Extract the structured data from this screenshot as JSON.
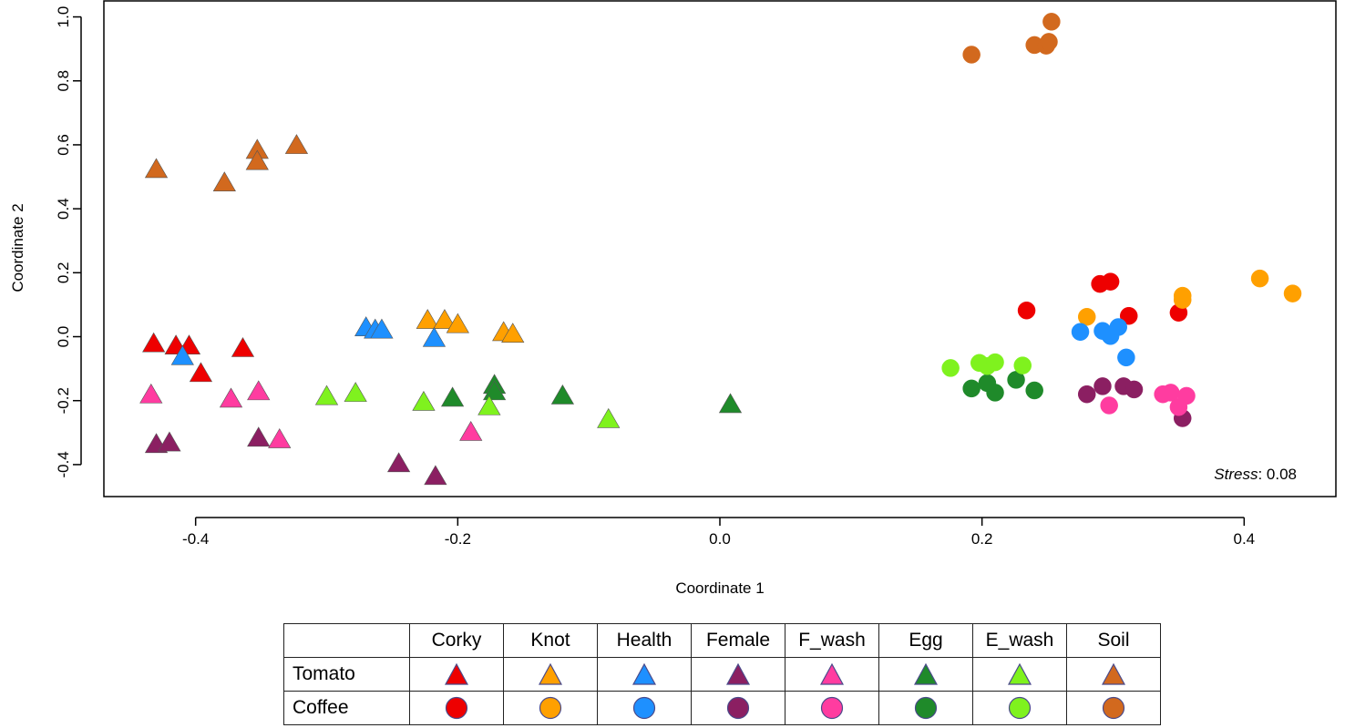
{
  "chart_data": {
    "type": "scatter",
    "xlabel": "Coordinate 1",
    "ylabel": "Coordinate 2",
    "xlim": [
      -0.47,
      0.47
    ],
    "ylim": [
      -0.5,
      1.05
    ],
    "xticks": [
      -0.4,
      -0.2,
      0.0,
      0.2,
      0.4
    ],
    "xtick_labels": [
      "-0.4",
      "-0.2",
      "0.0",
      "0.2",
      "0.4"
    ],
    "yticks": [
      -0.4,
      -0.2,
      0.0,
      0.2,
      0.4,
      0.6,
      0.8,
      1.0
    ],
    "ytick_labels": [
      "-0.4",
      "-0.2",
      "0.0",
      "0.2",
      "0.4",
      "0.6",
      "0.8",
      "1.0"
    ],
    "annotation": {
      "italic": "Stress",
      "rest": ": 0.08"
    },
    "series": [
      {
        "name": "Tomato Corky",
        "host": "Tomato",
        "group": "Corky",
        "shape": "triangle",
        "color": "#ee0000",
        "points": [
          [
            -0.432,
            -0.025
          ],
          [
            -0.415,
            -0.032
          ],
          [
            -0.405,
            -0.032
          ],
          [
            -0.396,
            -0.118
          ],
          [
            -0.364,
            -0.04
          ]
        ]
      },
      {
        "name": "Tomato Knot",
        "host": "Tomato",
        "group": "Knot",
        "shape": "triangle",
        "color": "#ffa000",
        "points": [
          [
            -0.223,
            0.048
          ],
          [
            -0.21,
            0.048
          ],
          [
            -0.2,
            0.035
          ],
          [
            -0.165,
            0.01
          ],
          [
            -0.158,
            0.005
          ]
        ]
      },
      {
        "name": "Tomato Health",
        "host": "Tomato",
        "group": "Health",
        "shape": "triangle",
        "color": "#1e90ff",
        "points": [
          [
            -0.27,
            0.025
          ],
          [
            -0.263,
            0.018
          ],
          [
            -0.258,
            0.018
          ],
          [
            -0.218,
            -0.008
          ],
          [
            -0.41,
            -0.065
          ]
        ]
      },
      {
        "name": "Tomato Female",
        "host": "Tomato",
        "group": "Female",
        "shape": "triangle",
        "color": "#8b1f62",
        "points": [
          [
            -0.43,
            -0.34
          ],
          [
            -0.42,
            -0.335
          ],
          [
            -0.352,
            -0.32
          ],
          [
            -0.245,
            -0.4
          ],
          [
            -0.217,
            -0.44
          ]
        ]
      },
      {
        "name": "Tomato F_wash",
        "host": "Tomato",
        "group": "F_wash",
        "shape": "triangle",
        "color": "#ff3ca0",
        "points": [
          [
            -0.434,
            -0.185
          ],
          [
            -0.373,
            -0.198
          ],
          [
            -0.352,
            -0.175
          ],
          [
            -0.336,
            -0.325
          ],
          [
            -0.19,
            -0.302
          ]
        ]
      },
      {
        "name": "Tomato Egg",
        "host": "Tomato",
        "group": "Egg",
        "shape": "triangle",
        "color": "#1f8a2a",
        "points": [
          [
            -0.204,
            -0.195
          ],
          [
            -0.172,
            -0.155
          ],
          [
            -0.172,
            -0.175
          ],
          [
            -0.12,
            -0.188
          ],
          [
            0.008,
            -0.215
          ]
        ]
      },
      {
        "name": "Tomato E_wash",
        "host": "Tomato",
        "group": "E_wash",
        "shape": "triangle",
        "color": "#7ff21e",
        "points": [
          [
            -0.3,
            -0.19
          ],
          [
            -0.278,
            -0.18
          ],
          [
            -0.226,
            -0.208
          ],
          [
            -0.176,
            -0.222
          ],
          [
            -0.085,
            -0.262
          ]
        ]
      },
      {
        "name": "Tomato Soil",
        "host": "Tomato",
        "group": "Soil",
        "shape": "triangle",
        "color": "#d2691e",
        "points": [
          [
            -0.43,
            0.52
          ],
          [
            -0.378,
            0.478
          ],
          [
            -0.353,
            0.58
          ],
          [
            -0.353,
            0.545
          ],
          [
            -0.323,
            0.595
          ]
        ]
      },
      {
        "name": "Coffee Corky",
        "host": "Coffee",
        "group": "Corky",
        "shape": "circle",
        "color": "#ee0000",
        "points": [
          [
            0.234,
            0.082
          ],
          [
            0.29,
            0.165
          ],
          [
            0.298,
            0.172
          ],
          [
            0.312,
            0.065
          ],
          [
            0.35,
            0.075
          ]
        ]
      },
      {
        "name": "Coffee Knot",
        "host": "Coffee",
        "group": "Knot",
        "shape": "circle",
        "color": "#ffa000",
        "points": [
          [
            0.28,
            0.062
          ],
          [
            0.353,
            0.128
          ],
          [
            0.353,
            0.115
          ],
          [
            0.412,
            0.182
          ],
          [
            0.437,
            0.135
          ]
        ]
      },
      {
        "name": "Coffee Health",
        "host": "Coffee",
        "group": "Health",
        "shape": "circle",
        "color": "#1e90ff",
        "points": [
          [
            0.275,
            0.015
          ],
          [
            0.292,
            0.018
          ],
          [
            0.298,
            0.002
          ],
          [
            0.304,
            0.03
          ],
          [
            0.31,
            -0.065
          ]
        ]
      },
      {
        "name": "Coffee Female",
        "host": "Coffee",
        "group": "Female",
        "shape": "circle",
        "color": "#8b1f62",
        "points": [
          [
            0.28,
            -0.18
          ],
          [
            0.292,
            -0.155
          ],
          [
            0.308,
            -0.155
          ],
          [
            0.316,
            -0.165
          ],
          [
            0.353,
            -0.255
          ]
        ]
      },
      {
        "name": "Coffee F_wash",
        "host": "Coffee",
        "group": "F_wash",
        "shape": "circle",
        "color": "#ff3ca0",
        "points": [
          [
            0.297,
            -0.215
          ],
          [
            0.338,
            -0.18
          ],
          [
            0.344,
            -0.175
          ],
          [
            0.35,
            -0.22
          ],
          [
            0.356,
            -0.185
          ]
        ]
      },
      {
        "name": "Coffee Egg",
        "host": "Coffee",
        "group": "Egg",
        "shape": "circle",
        "color": "#1f8a2a",
        "points": [
          [
            0.192,
            -0.162
          ],
          [
            0.204,
            -0.145
          ],
          [
            0.21,
            -0.175
          ],
          [
            0.226,
            -0.135
          ],
          [
            0.24,
            -0.168
          ]
        ]
      },
      {
        "name": "Coffee E_wash",
        "host": "Coffee",
        "group": "E_wash",
        "shape": "circle",
        "color": "#7ff21e",
        "points": [
          [
            0.176,
            -0.098
          ],
          [
            0.198,
            -0.082
          ],
          [
            0.204,
            -0.092
          ],
          [
            0.21,
            -0.08
          ],
          [
            0.231,
            -0.09
          ]
        ]
      },
      {
        "name": "Coffee Soil",
        "host": "Coffee",
        "group": "Soil",
        "shape": "circle",
        "color": "#d2691e",
        "points": [
          [
            0.192,
            0.882
          ],
          [
            0.24,
            0.912
          ],
          [
            0.249,
            0.91
          ],
          [
            0.251,
            0.922
          ],
          [
            0.253,
            0.985
          ]
        ]
      }
    ]
  },
  "legend": {
    "columns": [
      "Corky",
      "Knot",
      "Health",
      "Female",
      "F_wash",
      "Egg",
      "E_wash",
      "Soil"
    ],
    "colors": [
      "#ee0000",
      "#ffa000",
      "#1e90ff",
      "#8b1f62",
      "#ff3ca0",
      "#1f8a2a",
      "#7ff21e",
      "#d2691e"
    ],
    "rows": [
      {
        "label": "Tomato",
        "shape": "triangle"
      },
      {
        "label": "Coffee",
        "shape": "circle"
      }
    ]
  }
}
